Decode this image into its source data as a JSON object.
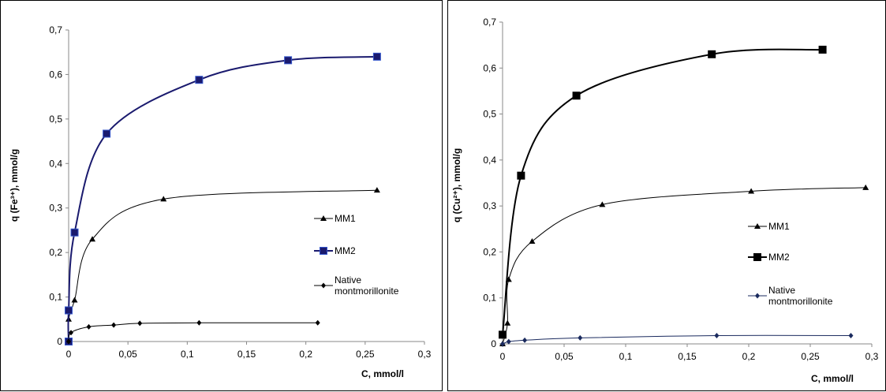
{
  "chart_data": [
    {
      "type": "line",
      "x_label": "C, mmol/l",
      "y_label": "q (Fe³⁺), mmol/g",
      "xlim": [
        0,
        0.3
      ],
      "ylim": [
        0,
        0.7
      ],
      "xticks": [
        0,
        {
          "value": 0.05,
          "label": "0,05"
        },
        {
          "value": 0.1,
          "label": "0,1"
        },
        {
          "value": 0.15,
          "label": "0,15"
        },
        {
          "value": 0.2,
          "label": "0,2"
        },
        {
          "value": 0.25,
          "label": "0,25"
        },
        {
          "value": 0.3,
          "label": "0,3"
        }
      ],
      "yticks": [
        0,
        {
          "value": 0.1,
          "label": "0,1"
        },
        {
          "value": 0.2,
          "label": "0,2"
        },
        {
          "value": 0.3,
          "label": "0,3"
        },
        {
          "value": 0.4,
          "label": "0,4"
        },
        {
          "value": 0.5,
          "label": "0,5"
        },
        {
          "value": 0.6,
          "label": "0,6"
        },
        {
          "value": 0.7,
          "label": "0,7"
        }
      ],
      "series": [
        {
          "name": "MM1",
          "color": "#000000",
          "marker": "triangle",
          "x": [
            0,
            0,
            0.005,
            0.02,
            0.08,
            0.26
          ],
          "values": [
            0,
            0.05,
            0.093,
            0.23,
            0.32,
            0.34
          ]
        },
        {
          "name": "MM2",
          "color": "#1a1a6e",
          "marker": "square",
          "x": [
            0,
            0,
            0.005,
            0.032,
            0.11,
            0.185,
            0.26
          ],
          "values": [
            0,
            0.07,
            0.245,
            0.467,
            0.588,
            0.632,
            0.64
          ]
        },
        {
          "name": "Native montmorillonite",
          "color": "#000000",
          "marker": "diamond",
          "x": [
            0,
            0.002,
            0.017,
            0.038,
            0.06,
            0.11,
            0.21
          ],
          "values": [
            0,
            0.02,
            0.033,
            0.037,
            0.041,
            0.042,
            0.042
          ]
        }
      ]
    },
    {
      "type": "line",
      "x_label": "C, mmol/l",
      "y_label": "q (Cu²⁺), mmol/g",
      "xlim": [
        0,
        0.3
      ],
      "ylim": [
        0,
        0.7
      ],
      "xticks": [
        0,
        {
          "value": 0.05,
          "label": "0,05"
        },
        {
          "value": 0.1,
          "label": "0,1"
        },
        {
          "value": 0.15,
          "label": "0,15"
        },
        {
          "value": 0.2,
          "label": "0,2"
        },
        {
          "value": 0.25,
          "label": "0,25"
        },
        {
          "value": 0.3,
          "label": "0,3"
        }
      ],
      "yticks": [
        0,
        {
          "value": 0.1,
          "label": "0,1"
        },
        {
          "value": 0.2,
          "label": "0,2"
        },
        {
          "value": 0.3,
          "label": "0,3"
        },
        {
          "value": 0.4,
          "label": "0,4"
        },
        {
          "value": 0.5,
          "label": "0,5"
        },
        {
          "value": 0.6,
          "label": "0,6"
        },
        {
          "value": 0.7,
          "label": "0,7"
        }
      ],
      "series": [
        {
          "name": "MM1",
          "color": "#000000",
          "marker": "triangle",
          "x": [
            0,
            0.004,
            0.005,
            0.024,
            0.081,
            0.202,
            0.295
          ],
          "values": [
            0,
            0.045,
            0.14,
            0.223,
            0.303,
            0.332,
            0.34
          ]
        },
        {
          "name": "MM2",
          "color": "#000000",
          "marker": "square",
          "x": [
            0,
            0.015,
            0.06,
            0.17,
            0.26
          ],
          "values": [
            0.02,
            0.366,
            0.54,
            0.63,
            0.64
          ]
        },
        {
          "name": "Native montmorillonite",
          "color": "#1a2a5e",
          "marker": "diamond",
          "x": [
            0,
            0.005,
            0.018,
            0.063,
            0.174,
            0.283
          ],
          "values": [
            0,
            0.005,
            0.008,
            0.013,
            0.018,
            0.018
          ]
        }
      ]
    }
  ]
}
